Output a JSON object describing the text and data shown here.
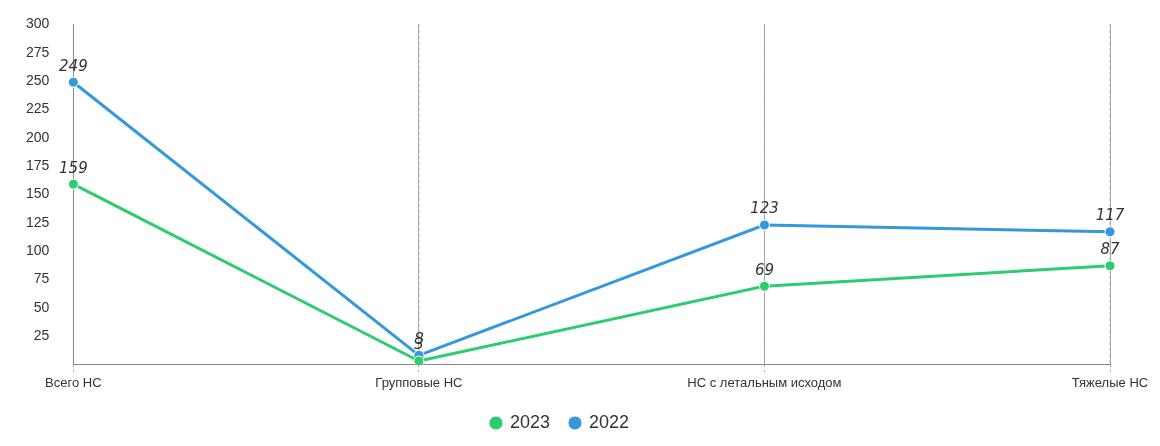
{
  "chart_data": {
    "type": "line",
    "categories": [
      "Всего НС",
      "Групповые НС",
      "НС с летальным исходом",
      "Тяжелые НС"
    ],
    "series": [
      {
        "name": "2023",
        "color": "#2ecc71",
        "values": [
          159,
          3,
          69,
          87
        ]
      },
      {
        "name": "2022",
        "color": "#3498db",
        "values": [
          249,
          8,
          123,
          117
        ]
      }
    ],
    "ylim": [
      0,
      300
    ],
    "yticks": [
      25,
      50,
      75,
      100,
      125,
      150,
      175,
      200,
      225,
      250,
      275,
      300
    ],
    "grid": "x",
    "legend": "bottom",
    "marker": "circle",
    "line_style": "solid",
    "data_labels": true
  }
}
